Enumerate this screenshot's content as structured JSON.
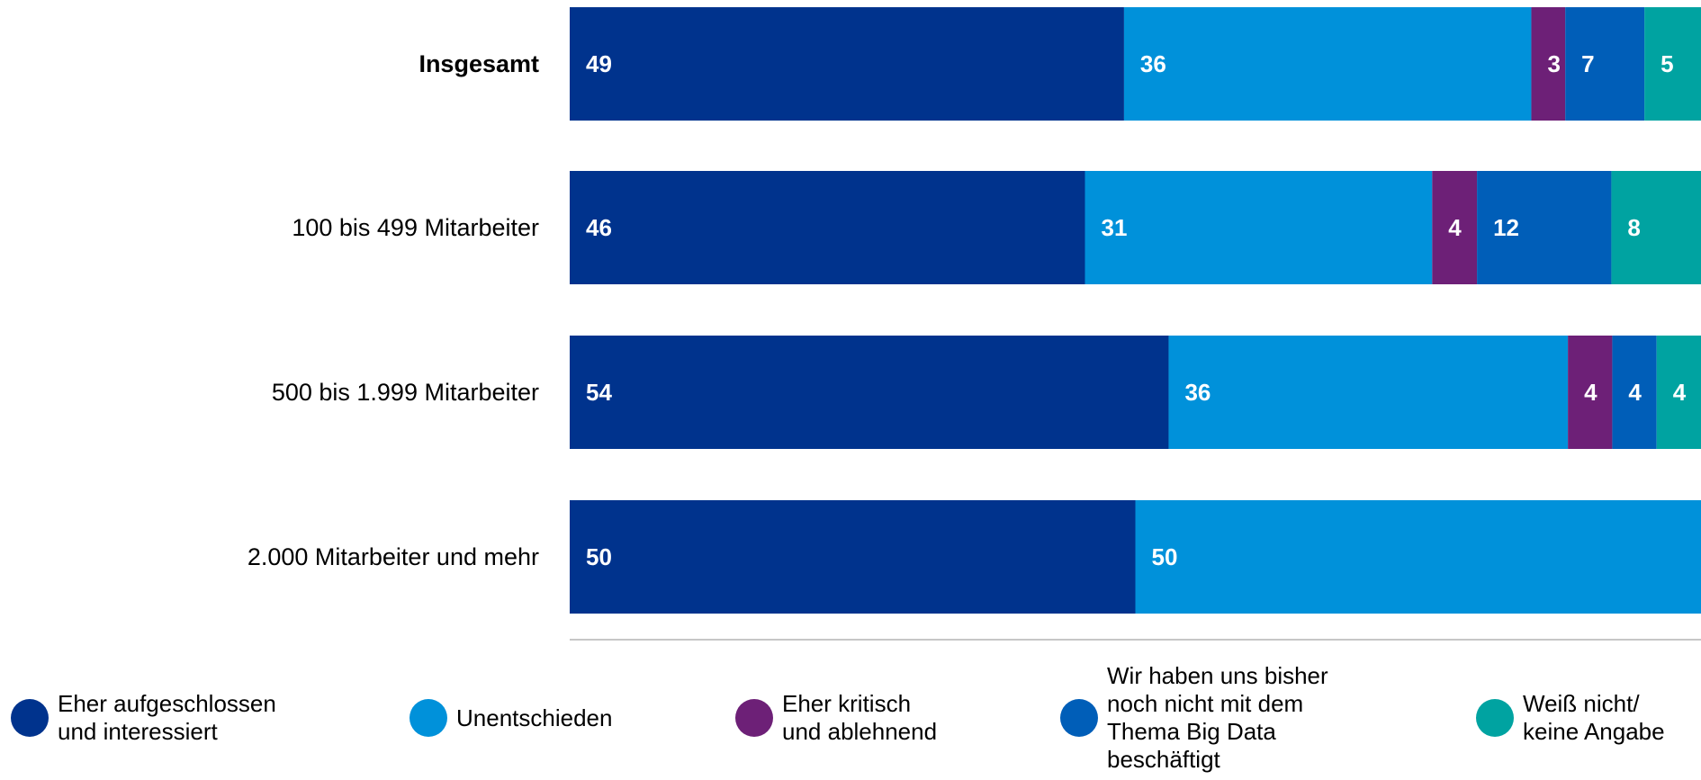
{
  "chart_data": {
    "type": "bar",
    "orientation": "horizontal",
    "stacked": true,
    "percent_stacked": true,
    "categories": [
      "Insgesamt",
      "100 bis 499 Mitarbeiter",
      "500 bis 1.999 Mitarbeiter",
      "2.000 Mitarbeiter und mehr"
    ],
    "bold_categories": [
      "Insgesamt"
    ],
    "series": [
      {
        "name": "Eher aufgeschlossen\nund interessiert",
        "color": "#00338D",
        "values": [
          49,
          46,
          54,
          50
        ]
      },
      {
        "name": "Unentschieden",
        "color": "#0091DA",
        "values": [
          36,
          31,
          36,
          50
        ]
      },
      {
        "name": "Eher kritisch\nund ablehnend",
        "color": "#6D2077",
        "values": [
          3,
          4,
          4,
          0
        ]
      },
      {
        "name": "Wir haben uns bisher\nnoch nicht mit dem\nThema Big Data\nbeschäftigt",
        "color": "#005EB8",
        "values": [
          7,
          12,
          4,
          0
        ]
      },
      {
        "name": "Weiß nicht/\nkeine Angabe",
        "color": "#00A3A1",
        "values": [
          5,
          8,
          4,
          0
        ]
      }
    ],
    "legend": "bottom",
    "grid": false
  }
}
